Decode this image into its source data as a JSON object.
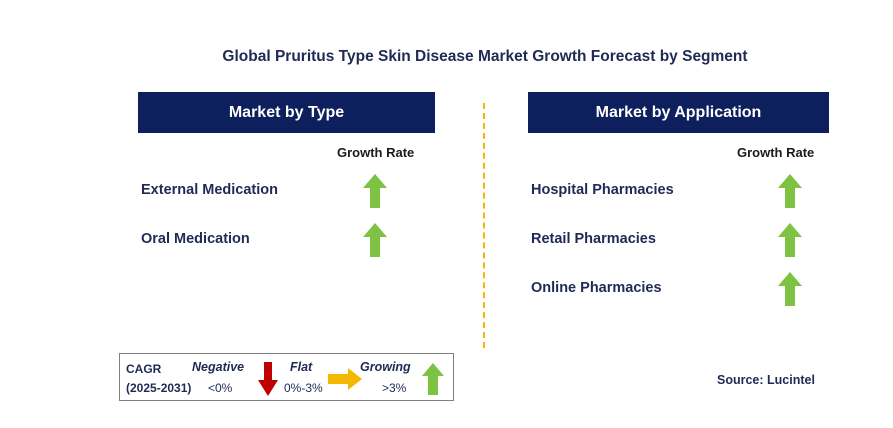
{
  "title": "Global Pruritus Type Skin Disease Market Growth Forecast by Segment",
  "colors": {
    "header_bg": "#0d1f5c",
    "growing": "#7dc242",
    "negative": "#c00000",
    "flat": "#f5b800",
    "text": "#1f2a55"
  },
  "chart_data": {
    "type": "table",
    "title": "Global Pruritus Type Skin Disease Market Growth Forecast by Segment",
    "panels": [
      {
        "header": "Market by Type",
        "column_header": "Growth Rate",
        "segments": [
          {
            "label": "External Medication",
            "growth": "Growing",
            "icon": "green-up-arrow"
          },
          {
            "label": "Oral Medication",
            "growth": "Growing",
            "icon": "green-up-arrow"
          }
        ]
      },
      {
        "header": "Market by Application",
        "column_header": "Growth Rate",
        "segments": [
          {
            "label": "Hospital Pharmacies",
            "growth": "Growing",
            "icon": "green-up-arrow"
          },
          {
            "label": "Retail Pharmacies",
            "growth": "Growing",
            "icon": "green-up-arrow"
          },
          {
            "label": "Online Pharmacies",
            "growth": "Growing",
            "icon": "green-up-arrow"
          }
        ]
      }
    ]
  },
  "legend": {
    "title_line1": "CAGR",
    "title_line2": "(2025-2031)",
    "items": [
      {
        "label": "Negative",
        "range": "<0%",
        "icon": "red-down-arrow"
      },
      {
        "label": "Flat",
        "range": "0%-3%",
        "icon": "yellow-right-arrow"
      },
      {
        "label": "Growing",
        "range": ">3%",
        "icon": "green-up-arrow"
      }
    ]
  },
  "source": "Source: Lucintel"
}
